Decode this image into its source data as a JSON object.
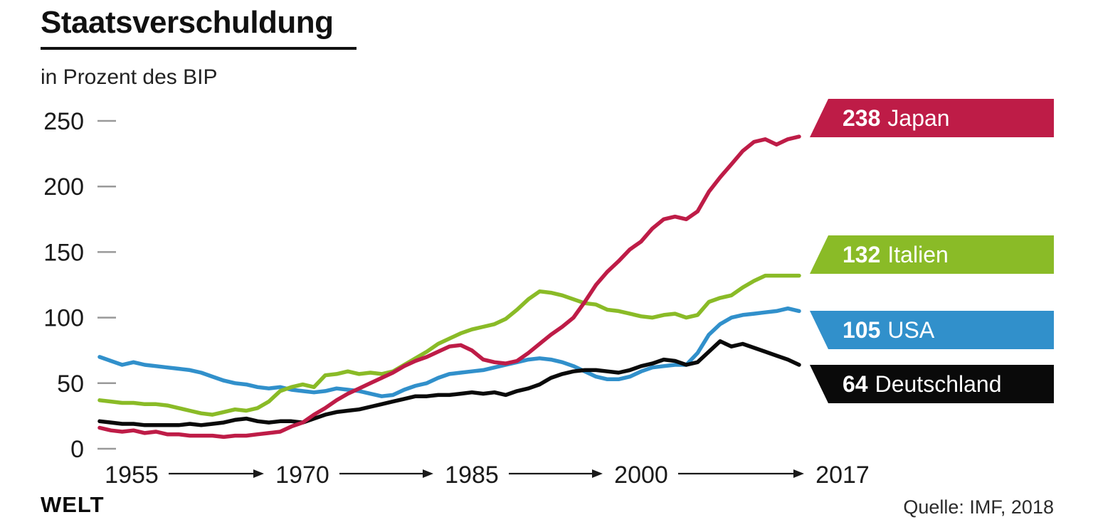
{
  "header": {
    "title": "Staatsverschuldung",
    "subtitle": "in Prozent des BIP"
  },
  "footer": {
    "brand": "WELT",
    "source": "Quelle: IMF, 2018"
  },
  "badges": [
    {
      "value": "238",
      "name": "Japan",
      "color": "#BE1C47"
    },
    {
      "value": "132",
      "name": "Italien",
      "color": "#8ABB27"
    },
    {
      "value": "105",
      "name": "USA",
      "color": "#3190CB"
    },
    {
      "value": "64",
      "name": "Deutschland",
      "color": "#0A0A0A"
    }
  ],
  "chart_data": {
    "type": "line",
    "title": "Staatsverschuldung",
    "ylabel": "in Prozent des BIP",
    "xlabel": "",
    "ylim": [
      0,
      250
    ],
    "yticks": [
      0,
      50,
      100,
      150,
      200,
      250
    ],
    "x_axis_labels": [
      "1955",
      "1970",
      "1985",
      "2000",
      "2017"
    ],
    "grid": false,
    "legend_position": "right-end-badges",
    "series": [
      {
        "name": "USA",
        "color": "#3190CB",
        "end_value": 105,
        "points": [
          [
            1955,
            70
          ],
          [
            1956,
            67
          ],
          [
            1957,
            64
          ],
          [
            1958,
            66
          ],
          [
            1959,
            64
          ],
          [
            1960,
            63
          ],
          [
            1961,
            62
          ],
          [
            1962,
            61
          ],
          [
            1963,
            60
          ],
          [
            1964,
            58
          ],
          [
            1965,
            55
          ],
          [
            1966,
            52
          ],
          [
            1967,
            50
          ],
          [
            1968,
            49
          ],
          [
            1969,
            47
          ],
          [
            1970,
            46
          ],
          [
            1971,
            47
          ],
          [
            1972,
            45
          ],
          [
            1973,
            44
          ],
          [
            1974,
            43
          ],
          [
            1975,
            44
          ],
          [
            1976,
            46
          ],
          [
            1977,
            45
          ],
          [
            1978,
            44
          ],
          [
            1979,
            42
          ],
          [
            1980,
            40
          ],
          [
            1981,
            41
          ],
          [
            1982,
            45
          ],
          [
            1983,
            48
          ],
          [
            1984,
            50
          ],
          [
            1985,
            54
          ],
          [
            1986,
            57
          ],
          [
            1987,
            58
          ],
          [
            1988,
            59
          ],
          [
            1989,
            60
          ],
          [
            1990,
            62
          ],
          [
            1991,
            64
          ],
          [
            1992,
            66
          ],
          [
            1993,
            68
          ],
          [
            1994,
            69
          ],
          [
            1995,
            68
          ],
          [
            1996,
            66
          ],
          [
            1997,
            63
          ],
          [
            1998,
            59
          ],
          [
            1999,
            55
          ],
          [
            2000,
            53
          ],
          [
            2001,
            53
          ],
          [
            2002,
            55
          ],
          [
            2003,
            59
          ],
          [
            2004,
            62
          ],
          [
            2005,
            63
          ],
          [
            2006,
            64
          ],
          [
            2007,
            64
          ],
          [
            2008,
            73
          ],
          [
            2009,
            87
          ],
          [
            2010,
            95
          ],
          [
            2011,
            100
          ],
          [
            2012,
            102
          ],
          [
            2013,
            103
          ],
          [
            2014,
            104
          ],
          [
            2015,
            105
          ],
          [
            2016,
            107
          ],
          [
            2017,
            105
          ]
        ]
      },
      {
        "name": "Italien",
        "color": "#8ABB27",
        "end_value": 132,
        "points": [
          [
            1955,
            37
          ],
          [
            1956,
            36
          ],
          [
            1957,
            35
          ],
          [
            1958,
            35
          ],
          [
            1959,
            34
          ],
          [
            1960,
            34
          ],
          [
            1961,
            33
          ],
          [
            1962,
            31
          ],
          [
            1963,
            29
          ],
          [
            1964,
            27
          ],
          [
            1965,
            26
          ],
          [
            1966,
            28
          ],
          [
            1967,
            30
          ],
          [
            1968,
            29
          ],
          [
            1969,
            31
          ],
          [
            1970,
            36
          ],
          [
            1971,
            44
          ],
          [
            1972,
            47
          ],
          [
            1973,
            49
          ],
          [
            1974,
            47
          ],
          [
            1975,
            56
          ],
          [
            1976,
            57
          ],
          [
            1977,
            59
          ],
          [
            1978,
            57
          ],
          [
            1979,
            58
          ],
          [
            1980,
            57
          ],
          [
            1981,
            59
          ],
          [
            1982,
            64
          ],
          [
            1983,
            69
          ],
          [
            1984,
            74
          ],
          [
            1985,
            80
          ],
          [
            1986,
            84
          ],
          [
            1987,
            88
          ],
          [
            1988,
            91
          ],
          [
            1989,
            93
          ],
          [
            1990,
            95
          ],
          [
            1991,
            99
          ],
          [
            1992,
            106
          ],
          [
            1993,
            114
          ],
          [
            1994,
            120
          ],
          [
            1995,
            119
          ],
          [
            1996,
            117
          ],
          [
            1997,
            114
          ],
          [
            1998,
            111
          ],
          [
            1999,
            110
          ],
          [
            2000,
            106
          ],
          [
            2001,
            105
          ],
          [
            2002,
            103
          ],
          [
            2003,
            101
          ],
          [
            2004,
            100
          ],
          [
            2005,
            102
          ],
          [
            2006,
            103
          ],
          [
            2007,
            100
          ],
          [
            2008,
            102
          ],
          [
            2009,
            112
          ],
          [
            2010,
            115
          ],
          [
            2011,
            117
          ],
          [
            2012,
            123
          ],
          [
            2013,
            128
          ],
          [
            2014,
            132
          ],
          [
            2015,
            132
          ],
          [
            2016,
            132
          ],
          [
            2017,
            132
          ]
        ]
      },
      {
        "name": "Deutschland",
        "color": "#0A0A0A",
        "end_value": 64,
        "points": [
          [
            1955,
            21
          ],
          [
            1956,
            20
          ],
          [
            1957,
            19
          ],
          [
            1958,
            19
          ],
          [
            1959,
            18
          ],
          [
            1960,
            18
          ],
          [
            1961,
            18
          ],
          [
            1962,
            18
          ],
          [
            1963,
            19
          ],
          [
            1964,
            18
          ],
          [
            1965,
            19
          ],
          [
            1966,
            20
          ],
          [
            1967,
            22
          ],
          [
            1968,
            23
          ],
          [
            1969,
            21
          ],
          [
            1970,
            20
          ],
          [
            1971,
            21
          ],
          [
            1972,
            21
          ],
          [
            1973,
            20
          ],
          [
            1974,
            23
          ],
          [
            1975,
            26
          ],
          [
            1976,
            28
          ],
          [
            1977,
            29
          ],
          [
            1978,
            30
          ],
          [
            1979,
            32
          ],
          [
            1980,
            34
          ],
          [
            1981,
            36
          ],
          [
            1982,
            38
          ],
          [
            1983,
            40
          ],
          [
            1984,
            40
          ],
          [
            1985,
            41
          ],
          [
            1986,
            41
          ],
          [
            1987,
            42
          ],
          [
            1988,
            43
          ],
          [
            1989,
            42
          ],
          [
            1990,
            43
          ],
          [
            1991,
            41
          ],
          [
            1992,
            44
          ],
          [
            1993,
            46
          ],
          [
            1994,
            49
          ],
          [
            1995,
            54
          ],
          [
            1996,
            57
          ],
          [
            1997,
            59
          ],
          [
            1998,
            60
          ],
          [
            1999,
            60
          ],
          [
            2000,
            59
          ],
          [
            2001,
            58
          ],
          [
            2002,
            60
          ],
          [
            2003,
            63
          ],
          [
            2004,
            65
          ],
          [
            2005,
            68
          ],
          [
            2006,
            67
          ],
          [
            2007,
            64
          ],
          [
            2008,
            66
          ],
          [
            2009,
            74
          ],
          [
            2010,
            82
          ],
          [
            2011,
            78
          ],
          [
            2012,
            80
          ],
          [
            2013,
            77
          ],
          [
            2014,
            74
          ],
          [
            2015,
            71
          ],
          [
            2016,
            68
          ],
          [
            2017,
            64
          ]
        ]
      },
      {
        "name": "Japan",
        "color": "#BE1C47",
        "end_value": 238,
        "points": [
          [
            1955,
            16
          ],
          [
            1956,
            14
          ],
          [
            1957,
            13
          ],
          [
            1958,
            14
          ],
          [
            1959,
            12
          ],
          [
            1960,
            13
          ],
          [
            1961,
            11
          ],
          [
            1962,
            11
          ],
          [
            1963,
            10
          ],
          [
            1964,
            10
          ],
          [
            1965,
            10
          ],
          [
            1966,
            9
          ],
          [
            1967,
            10
          ],
          [
            1968,
            10
          ],
          [
            1969,
            11
          ],
          [
            1970,
            12
          ],
          [
            1971,
            13
          ],
          [
            1972,
            17
          ],
          [
            1973,
            20
          ],
          [
            1974,
            26
          ],
          [
            1975,
            31
          ],
          [
            1976,
            37
          ],
          [
            1977,
            42
          ],
          [
            1978,
            46
          ],
          [
            1979,
            50
          ],
          [
            1980,
            54
          ],
          [
            1981,
            58
          ],
          [
            1982,
            63
          ],
          [
            1983,
            67
          ],
          [
            1984,
            70
          ],
          [
            1985,
            74
          ],
          [
            1986,
            78
          ],
          [
            1987,
            79
          ],
          [
            1988,
            75
          ],
          [
            1989,
            68
          ],
          [
            1990,
            66
          ],
          [
            1991,
            65
          ],
          [
            1992,
            67
          ],
          [
            1993,
            73
          ],
          [
            1994,
            80
          ],
          [
            1995,
            87
          ],
          [
            1996,
            93
          ],
          [
            1997,
            100
          ],
          [
            1998,
            112
          ],
          [
            1999,
            125
          ],
          [
            2000,
            135
          ],
          [
            2001,
            143
          ],
          [
            2002,
            152
          ],
          [
            2003,
            158
          ],
          [
            2004,
            168
          ],
          [
            2005,
            175
          ],
          [
            2006,
            177
          ],
          [
            2007,
            175
          ],
          [
            2008,
            181
          ],
          [
            2009,
            196
          ],
          [
            2010,
            207
          ],
          [
            2011,
            217
          ],
          [
            2012,
            227
          ],
          [
            2013,
            234
          ],
          [
            2014,
            236
          ],
          [
            2015,
            232
          ],
          [
            2016,
            236
          ],
          [
            2017,
            238
          ]
        ]
      }
    ]
  }
}
